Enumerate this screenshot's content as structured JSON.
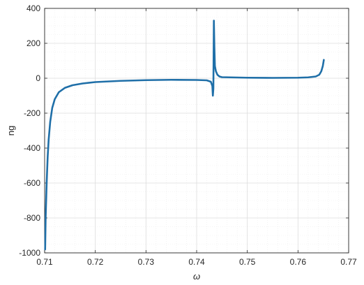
{
  "chart_data": {
    "type": "line",
    "title": "",
    "xlabel": "ω",
    "ylabel": "ng",
    "xlim": [
      0.71,
      0.77
    ],
    "ylim": [
      -1000,
      400
    ],
    "x_ticks": [
      "0.71",
      "0.72",
      "0.73",
      "0.74",
      "0.75",
      "0.76",
      "0.77"
    ],
    "y_ticks": [
      "400",
      "200",
      "0",
      "-200",
      "-400",
      "-600",
      "-800",
      "-1000"
    ],
    "grid": true,
    "minor_grid": true,
    "series": [
      {
        "color": "#1f6fa8",
        "x": [
          0.7101,
          0.7102,
          0.7104,
          0.7106,
          0.7108,
          0.7111,
          0.7115,
          0.712,
          0.7128,
          0.714,
          0.7155,
          0.7175,
          0.72,
          0.725,
          0.73,
          0.735,
          0.74,
          0.742,
          0.7428,
          0.7431,
          0.7432,
          0.7433,
          0.7434,
          0.7435,
          0.7436,
          0.7438,
          0.7441,
          0.7445,
          0.745,
          0.75,
          0.755,
          0.76,
          0.762,
          0.7635,
          0.7642,
          0.7646,
          0.7649,
          0.7651
        ],
        "y": [
          -980,
          -800,
          -600,
          -450,
          -350,
          -250,
          -170,
          -120,
          -80,
          -55,
          -40,
          -30,
          -22,
          -15,
          -11,
          -9,
          -10,
          -12,
          -20,
          -45,
          -100,
          -60,
          330,
          180,
          70,
          40,
          20,
          10,
          6,
          3,
          2,
          3,
          5,
          10,
          20,
          40,
          70,
          105
        ]
      }
    ]
  }
}
